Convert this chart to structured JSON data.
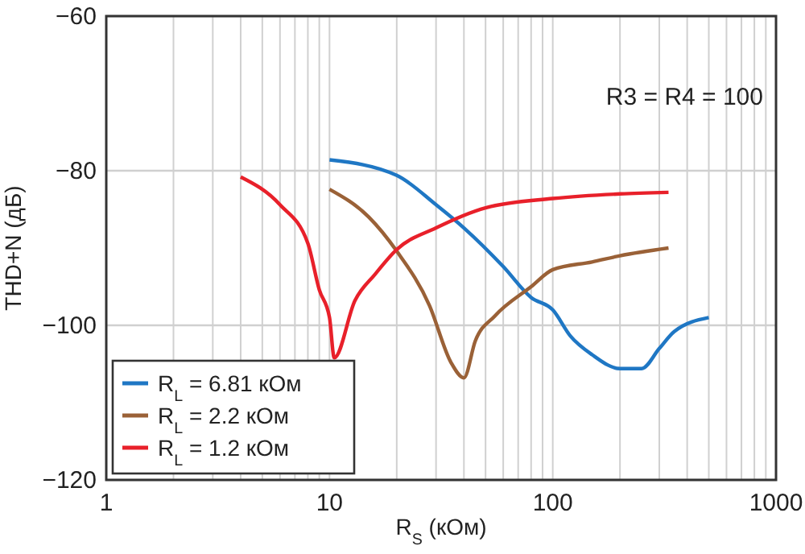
{
  "chart_data": {
    "type": "line",
    "xlabel": "R$_{S}$ (кОм)",
    "ylabel": "THD+N (дБ)",
    "log": "x",
    "xlim": [
      1,
      1000
    ],
    "ylim": [
      -120,
      -60
    ],
    "xticks": [
      1,
      {
        "value": 2,
        "label": null
      },
      {
        "value": 3,
        "label": null
      },
      {
        "value": 4,
        "label": null
      },
      {
        "value": 5,
        "label": null
      },
      {
        "value": 6,
        "label": null
      },
      {
        "value": 7,
        "label": null
      },
      {
        "value": 8,
        "label": null
      },
      {
        "value": 9,
        "label": null
      },
      10,
      {
        "value": 20,
        "label": null
      },
      {
        "value": 30,
        "label": null
      },
      {
        "value": 40,
        "label": null
      },
      {
        "value": 50,
        "label": null
      },
      {
        "value": 60,
        "label": null
      },
      {
        "value": 70,
        "label": null
      },
      {
        "value": 80,
        "label": null
      },
      {
        "value": 90,
        "label": null
      },
      100,
      {
        "value": 200,
        "label": null
      },
      {
        "value": 300,
        "label": null
      },
      {
        "value": 400,
        "label": null
      },
      {
        "value": 500,
        "label": null
      },
      {
        "value": 600,
        "label": null
      },
      {
        "value": 700,
        "label": null
      },
      {
        "value": 800,
        "label": null
      },
      {
        "value": 900,
        "label": null
      },
      1000
    ],
    "yticks": [
      -120,
      -100,
      -80,
      -60
    ],
    "grid": true,
    "legend": "bottom left",
    "line_style": "solid",
    "marker": "none",
    "annotations": [
      "R3 = R4 = 100"
    ],
    "series": [
      {
        "name": "R$_{L}$ = 6.81 кОм",
        "color": "#1f77c4",
        "x": [
          10,
          20,
          30,
          40,
          60,
          80,
          100,
          120,
          150,
          200,
          250,
          300,
          350,
          500
        ],
        "values": [
          -78.6,
          -80.6,
          -84.4,
          -87.4,
          -92.4,
          -96.4,
          -98,
          -101.4,
          -103.8,
          -105.6,
          -105.6,
          -103,
          -100.8,
          -99
        ]
      },
      {
        "name": "R$_{L}$ = 2.2 кОм",
        "color": "#9a6137",
        "x": [
          10,
          15,
          20,
          28,
          35,
          40,
          45,
          55,
          80,
          100,
          150,
          200,
          330
        ],
        "values": [
          -82.4,
          -86,
          -90.4,
          -97.4,
          -104.8,
          -106.8,
          -102,
          -98.8,
          -95,
          -92.8,
          -91.8,
          -91,
          -90
        ]
      },
      {
        "name": "R$_{L}$ = 1.2 кОм",
        "color": "#e8202a",
        "x": [
          4,
          6,
          8,
          9,
          10,
          10.5,
          13,
          16,
          20,
          30,
          50,
          100,
          200,
          330
        ],
        "values": [
          -80.8,
          -84.4,
          -89.4,
          -95.4,
          -99,
          -104.2,
          -96.8,
          -93.4,
          -90.2,
          -87.4,
          -84.8,
          -83.6,
          -83,
          -82.8
        ]
      }
    ]
  }
}
